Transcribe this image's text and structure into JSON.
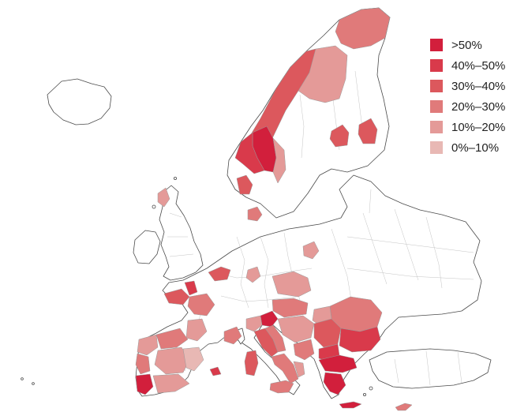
{
  "legend": {
    "items": [
      {
        "label": ">50%",
        "color": "#d21f3c"
      },
      {
        "label": "40%–50%",
        "color": "#d93a4b"
      },
      {
        "label": "30%–40%",
        "color": "#dc585d"
      },
      {
        "label": "20%–30%",
        "color": "#e07a7a"
      },
      {
        "label": "10%–20%",
        "color": "#e49a98"
      },
      {
        "label": "0%–10%",
        "color": "#e8b8b4"
      }
    ]
  }
}
